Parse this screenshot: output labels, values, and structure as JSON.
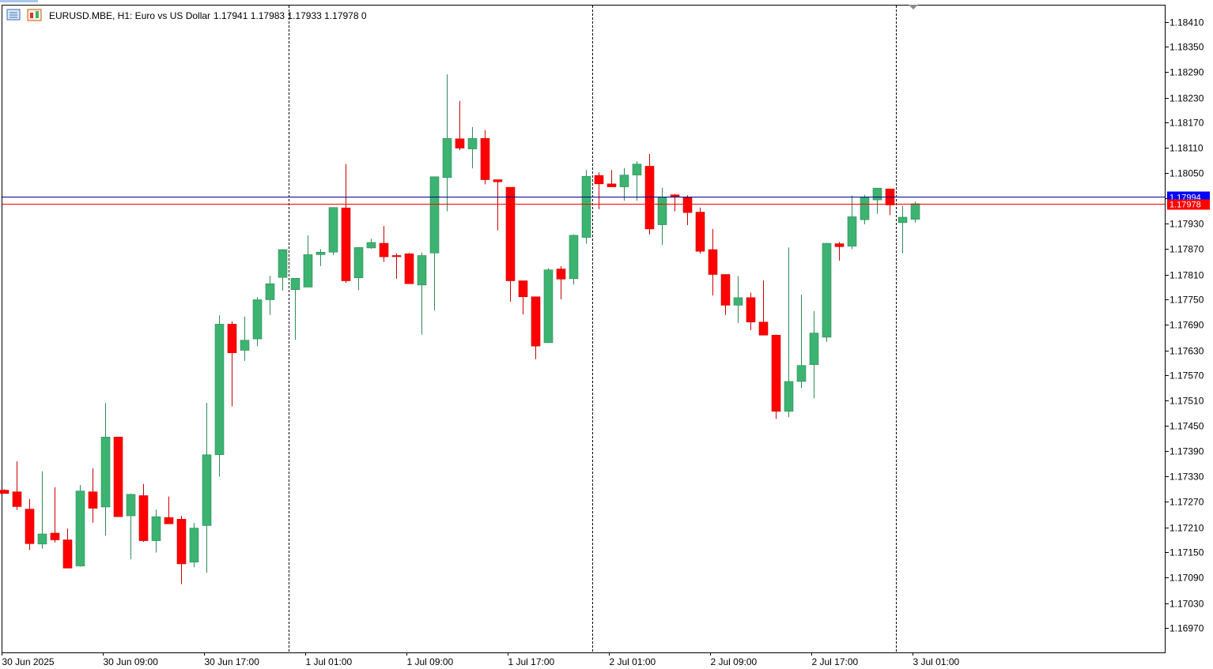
{
  "header": {
    "symbol_line": "EURUSD.MBE, H1:  Euro vs US Dollar",
    "ohlc_line": "1.17941 1.17983 1.17933 1.17978  0"
  },
  "icons": {
    "left": "menu-list-icon",
    "right": "chart-window-icon"
  },
  "colors": {
    "bull": "#3cb371",
    "bull_outline": "#2e8b57",
    "bear": "#ff0000",
    "bear_outline": "#cc0000",
    "wick_bear": "#cc0000",
    "grid": "#000000",
    "bid_line": "#ff0000",
    "ask_line": "#00008b",
    "ask_label": "#0000ff",
    "bid_label": "#ff0000"
  },
  "price_lines": {
    "ask": {
      "value": 1.17994,
      "label": "1.17994"
    },
    "bid": {
      "value": 1.17978,
      "label": "1.17978"
    }
  },
  "chart_data": {
    "type": "candlestick",
    "symbol": "EURUSD.MBE",
    "timeframe": "H1",
    "ylim": [
      1.169,
      1.1845
    ],
    "y_ticks": [
      "1.18410",
      "1.18350",
      "1.18290",
      "1.18230",
      "1.18170",
      "1.18110",
      "1.18050",
      "1.17990",
      "1.17930",
      "1.17870",
      "1.17810",
      "1.17750",
      "1.17690",
      "1.17630",
      "1.17570",
      "1.17510",
      "1.17450",
      "1.17390",
      "1.17330",
      "1.17270",
      "1.17210",
      "1.17150",
      "1.17090",
      "1.17030",
      "1.16970"
    ],
    "x_ticks": [
      {
        "label": "30 Jun 2025",
        "bar": 0
      },
      {
        "label": "30 Jun 09:00",
        "bar": 8
      },
      {
        "label": "30 Jun 17:00",
        "bar": 16
      },
      {
        "label": "1 Jul 01:00",
        "bar": 24
      },
      {
        "label": "1 Jul 09:00",
        "bar": 32
      },
      {
        "label": "1 Jul 17:00",
        "bar": 40
      },
      {
        "label": "2 Jul 01:00",
        "bar": 48
      },
      {
        "label": "2 Jul 09:00",
        "bar": 56
      },
      {
        "label": "2 Jul 17:00",
        "bar": 64
      },
      {
        "label": "3 Jul 01:00",
        "bar": 72
      }
    ],
    "day_separators_after_bar": [
      22.5,
      46.5,
      70.5
    ],
    "candles": [
      {
        "o": 1.17298,
        "h": 1.173,
        "l": 1.17298,
        "c": 1.1729
      },
      {
        "o": 1.17294,
        "h": 1.17366,
        "l": 1.17251,
        "c": 1.17259
      },
      {
        "o": 1.17253,
        "h": 1.17277,
        "l": 1.17156,
        "c": 1.17171
      },
      {
        "o": 1.1717,
        "h": 1.17343,
        "l": 1.17159,
        "c": 1.17194
      },
      {
        "o": 1.17196,
        "h": 1.17305,
        "l": 1.17174,
        "c": 1.1718
      },
      {
        "o": 1.1718,
        "h": 1.17207,
        "l": 1.17117,
        "c": 1.17113
      },
      {
        "o": 1.17118,
        "h": 1.1731,
        "l": 1.17116,
        "c": 1.17296
      },
      {
        "o": 1.17294,
        "h": 1.1735,
        "l": 1.17221,
        "c": 1.17255
      },
      {
        "o": 1.17258,
        "h": 1.17505,
        "l": 1.1719,
        "c": 1.17424
      },
      {
        "o": 1.17424,
        "h": 1.17425,
        "l": 1.17235,
        "c": 1.17235
      },
      {
        "o": 1.17237,
        "h": 1.1729,
        "l": 1.17134,
        "c": 1.17288
      },
      {
        "o": 1.17285,
        "h": 1.17313,
        "l": 1.17175,
        "c": 1.17178
      },
      {
        "o": 1.17178,
        "h": 1.17252,
        "l": 1.1715,
        "c": 1.17235
      },
      {
        "o": 1.17233,
        "h": 1.17283,
        "l": 1.17218,
        "c": 1.17218
      },
      {
        "o": 1.17229,
        "h": 1.17237,
        "l": 1.17075,
        "c": 1.17123
      },
      {
        "o": 1.17127,
        "h": 1.1722,
        "l": 1.17115,
        "c": 1.17208
      },
      {
        "o": 1.17214,
        "h": 1.17505,
        "l": 1.17102,
        "c": 1.17382
      },
      {
        "o": 1.17382,
        "h": 1.17713,
        "l": 1.1733,
        "c": 1.17692
      },
      {
        "o": 1.17692,
        "h": 1.17699,
        "l": 1.17497,
        "c": 1.17624
      },
      {
        "o": 1.1763,
        "h": 1.1771,
        "l": 1.17605,
        "c": 1.17654
      },
      {
        "o": 1.17657,
        "h": 1.17756,
        "l": 1.1764,
        "c": 1.1775
      },
      {
        "o": 1.1775,
        "h": 1.17807,
        "l": 1.17714,
        "c": 1.17788
      },
      {
        "o": 1.17803,
        "h": 1.1787,
        "l": 1.17772,
        "c": 1.17869
      },
      {
        "o": 1.17774,
        "h": 1.17801,
        "l": 1.17655,
        "c": 1.17801
      },
      {
        "o": 1.1778,
        "h": 1.17903,
        "l": 1.1778,
        "c": 1.17857
      },
      {
        "o": 1.17857,
        "h": 1.1787,
        "l": 1.1783,
        "c": 1.17863
      },
      {
        "o": 1.17863,
        "h": 1.17969,
        "l": 1.17856,
        "c": 1.17969
      },
      {
        "o": 1.17968,
        "h": 1.18072,
        "l": 1.1779,
        "c": 1.17795
      },
      {
        "o": 1.17802,
        "h": 1.17875,
        "l": 1.17773,
        "c": 1.17874
      },
      {
        "o": 1.17873,
        "h": 1.17895,
        "l": 1.17871,
        "c": 1.17886
      },
      {
        "o": 1.17884,
        "h": 1.17925,
        "l": 1.1784,
        "c": 1.17852
      },
      {
        "o": 1.17855,
        "h": 1.1786,
        "l": 1.178,
        "c": 1.17854
      },
      {
        "o": 1.17859,
        "h": 1.17861,
        "l": 1.17789,
        "c": 1.17788
      },
      {
        "o": 1.17785,
        "h": 1.17862,
        "l": 1.17667,
        "c": 1.17855
      },
      {
        "o": 1.17861,
        "h": 1.1804,
        "l": 1.17725,
        "c": 1.18042
      },
      {
        "o": 1.1804,
        "h": 1.18285,
        "l": 1.1796,
        "c": 1.18133
      },
      {
        "o": 1.18132,
        "h": 1.18222,
        "l": 1.18105,
        "c": 1.1811
      },
      {
        "o": 1.18108,
        "h": 1.1816,
        "l": 1.18062,
        "c": 1.18133
      },
      {
        "o": 1.18133,
        "h": 1.18153,
        "l": 1.18024,
        "c": 1.18035
      },
      {
        "o": 1.18035,
        "h": 1.18035,
        "l": 1.17915,
        "c": 1.1803
      },
      {
        "o": 1.18017,
        "h": 1.18017,
        "l": 1.17745,
        "c": 1.17795
      },
      {
        "o": 1.17795,
        "h": 1.17795,
        "l": 1.17715,
        "c": 1.17757
      },
      {
        "o": 1.17757,
        "h": 1.17757,
        "l": 1.17609,
        "c": 1.1764
      },
      {
        "o": 1.17648,
        "h": 1.17825,
        "l": 1.17648,
        "c": 1.17821
      },
      {
        "o": 1.17823,
        "h": 1.1783,
        "l": 1.17751,
        "c": 1.17799
      },
      {
        "o": 1.178,
        "h": 1.17905,
        "l": 1.17786,
        "c": 1.17903
      },
      {
        "o": 1.17898,
        "h": 1.18058,
        "l": 1.17883,
        "c": 1.18043
      },
      {
        "o": 1.18045,
        "h": 1.18052,
        "l": 1.17965,
        "c": 1.18025
      },
      {
        "o": 1.18025,
        "h": 1.18058,
        "l": 1.18018,
        "c": 1.18018
      },
      {
        "o": 1.18018,
        "h": 1.18063,
        "l": 1.17985,
        "c": 1.18046
      },
      {
        "o": 1.18046,
        "h": 1.18079,
        "l": 1.17985,
        "c": 1.18072
      },
      {
        "o": 1.18067,
        "h": 1.18096,
        "l": 1.17905,
        "c": 1.17918
      },
      {
        "o": 1.17928,
        "h": 1.18016,
        "l": 1.1788,
        "c": 1.17993
      },
      {
        "o": 1.17999,
        "h": 1.18001,
        "l": 1.1796,
        "c": 1.17995
      },
      {
        "o": 1.17993,
        "h": 1.17998,
        "l": 1.17927,
        "c": 1.17957
      },
      {
        "o": 1.17958,
        "h": 1.17969,
        "l": 1.17859,
        "c": 1.17865
      },
      {
        "o": 1.17869,
        "h": 1.17918,
        "l": 1.1776,
        "c": 1.1781
      },
      {
        "o": 1.1781,
        "h": 1.1781,
        "l": 1.17714,
        "c": 1.17737
      },
      {
        "o": 1.17737,
        "h": 1.17806,
        "l": 1.17695,
        "c": 1.17755
      },
      {
        "o": 1.17755,
        "h": 1.17767,
        "l": 1.17678,
        "c": 1.17697
      },
      {
        "o": 1.17697,
        "h": 1.17796,
        "l": 1.17668,
        "c": 1.17666
      },
      {
        "o": 1.17666,
        "h": 1.17667,
        "l": 1.17467,
        "c": 1.17485
      },
      {
        "o": 1.17485,
        "h": 1.17874,
        "l": 1.17471,
        "c": 1.17556
      },
      {
        "o": 1.17556,
        "h": 1.17762,
        "l": 1.1754,
        "c": 1.17594
      },
      {
        "o": 1.17596,
        "h": 1.17723,
        "l": 1.17516,
        "c": 1.17671
      },
      {
        "o": 1.17661,
        "h": 1.17885,
        "l": 1.1765,
        "c": 1.17884
      },
      {
        "o": 1.17883,
        "h": 1.17887,
        "l": 1.17843,
        "c": 1.17876
      },
      {
        "o": 1.17877,
        "h": 1.17997,
        "l": 1.1787,
        "c": 1.17947
      },
      {
        "o": 1.1794,
        "h": 1.17999,
        "l": 1.17929,
        "c": 1.17993
      },
      {
        "o": 1.17987,
        "h": 1.18015,
        "l": 1.17954,
        "c": 1.18015
      },
      {
        "o": 1.18013,
        "h": 1.18014,
        "l": 1.17951,
        "c": 1.17975
      },
      {
        "o": 1.17933,
        "h": 1.17973,
        "l": 1.1786,
        "c": 1.17946
      },
      {
        "o": 1.17941,
        "h": 1.17983,
        "l": 1.17933,
        "c": 1.17978
      }
    ]
  }
}
